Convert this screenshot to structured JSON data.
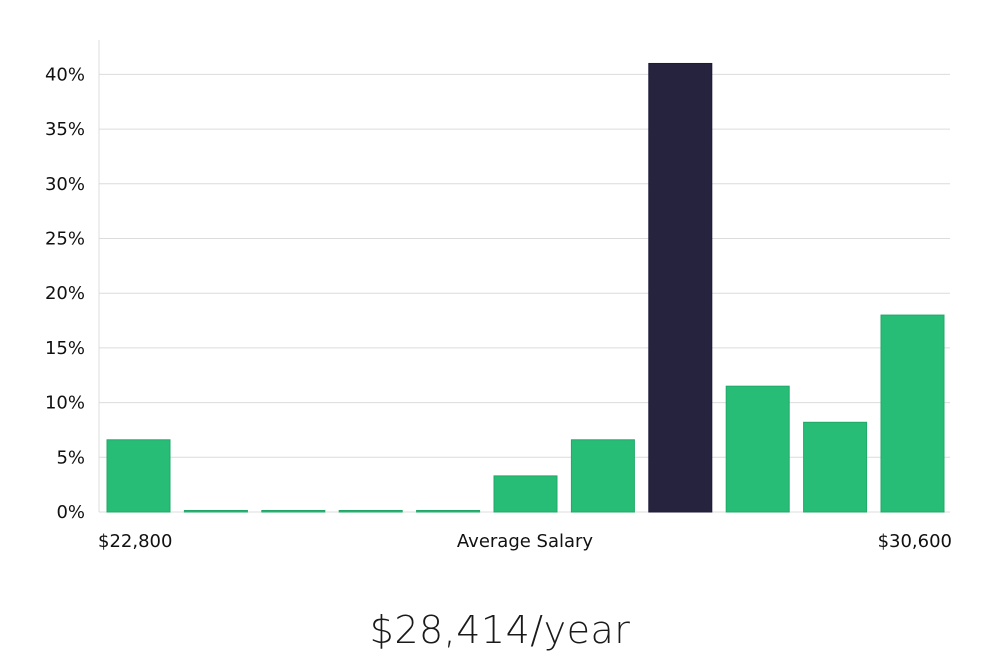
{
  "chart_data": {
    "type": "bar",
    "title": "",
    "xlabel": "Average Salary",
    "ylabel": "",
    "x_min_label": "$22,800",
    "x_max_label": "$30,600",
    "bins": 11,
    "values": [
      6.6,
      0.1,
      0.1,
      0.1,
      0.1,
      3.3,
      6.6,
      41.0,
      11.5,
      8.2,
      18.0
    ],
    "highlight_index": 7,
    "ylim": [
      0,
      43
    ],
    "yticks": [
      "0%",
      "5%",
      "10%",
      "15%",
      "20%",
      "25%",
      "30%",
      "35%",
      "40%"
    ],
    "ytick_values": [
      0,
      5,
      10,
      15,
      20,
      25,
      30,
      35,
      40
    ],
    "grid": true,
    "colors": {
      "bar": "#27bd77",
      "highlight": "#26233f",
      "grid": "#dcdcdc"
    }
  },
  "salary": "$28,414/year"
}
